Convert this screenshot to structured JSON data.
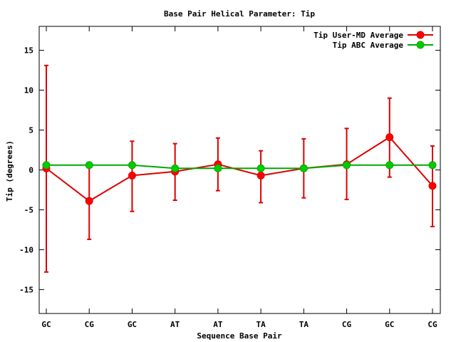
{
  "chart_data": {
    "type": "line",
    "title": "Base Pair Helical Parameter: Tip",
    "xlabel": "Sequence Base Pair",
    "ylabel": "Tip (degrees)",
    "categories": [
      "GC",
      "CG",
      "GC",
      "AT",
      "AT",
      "TA",
      "TA",
      "CG",
      "GC",
      "CG"
    ],
    "ylim": [
      -18,
      18
    ],
    "yticks": [
      -15,
      -10,
      -5,
      0,
      5,
      10,
      15
    ],
    "grid": false,
    "legend_position": "top-right",
    "series": [
      {
        "name": "Tip User-MD Average",
        "color": "#ff0000",
        "line_color": "#dd0000",
        "values": [
          0.2,
          -3.9,
          -0.7,
          -0.2,
          0.7,
          -0.7,
          0.2,
          0.7,
          4.1,
          -2.0
        ],
        "error_low": [
          -12.8,
          -8.7,
          -5.2,
          -3.8,
          -2.6,
          -4.1,
          -3.5,
          -3.7,
          -0.9,
          -7.1
        ],
        "error_high": [
          13.1,
          0.6,
          3.6,
          3.3,
          4.0,
          2.4,
          3.9,
          5.2,
          9.0,
          3.0
        ]
      },
      {
        "name": "Tip ABC Average",
        "color": "#00cc00",
        "line_color": "#00aa00",
        "values": [
          0.6,
          0.6,
          0.6,
          0.2,
          0.2,
          0.2,
          0.2,
          0.6,
          0.6,
          0.6
        ]
      }
    ]
  }
}
